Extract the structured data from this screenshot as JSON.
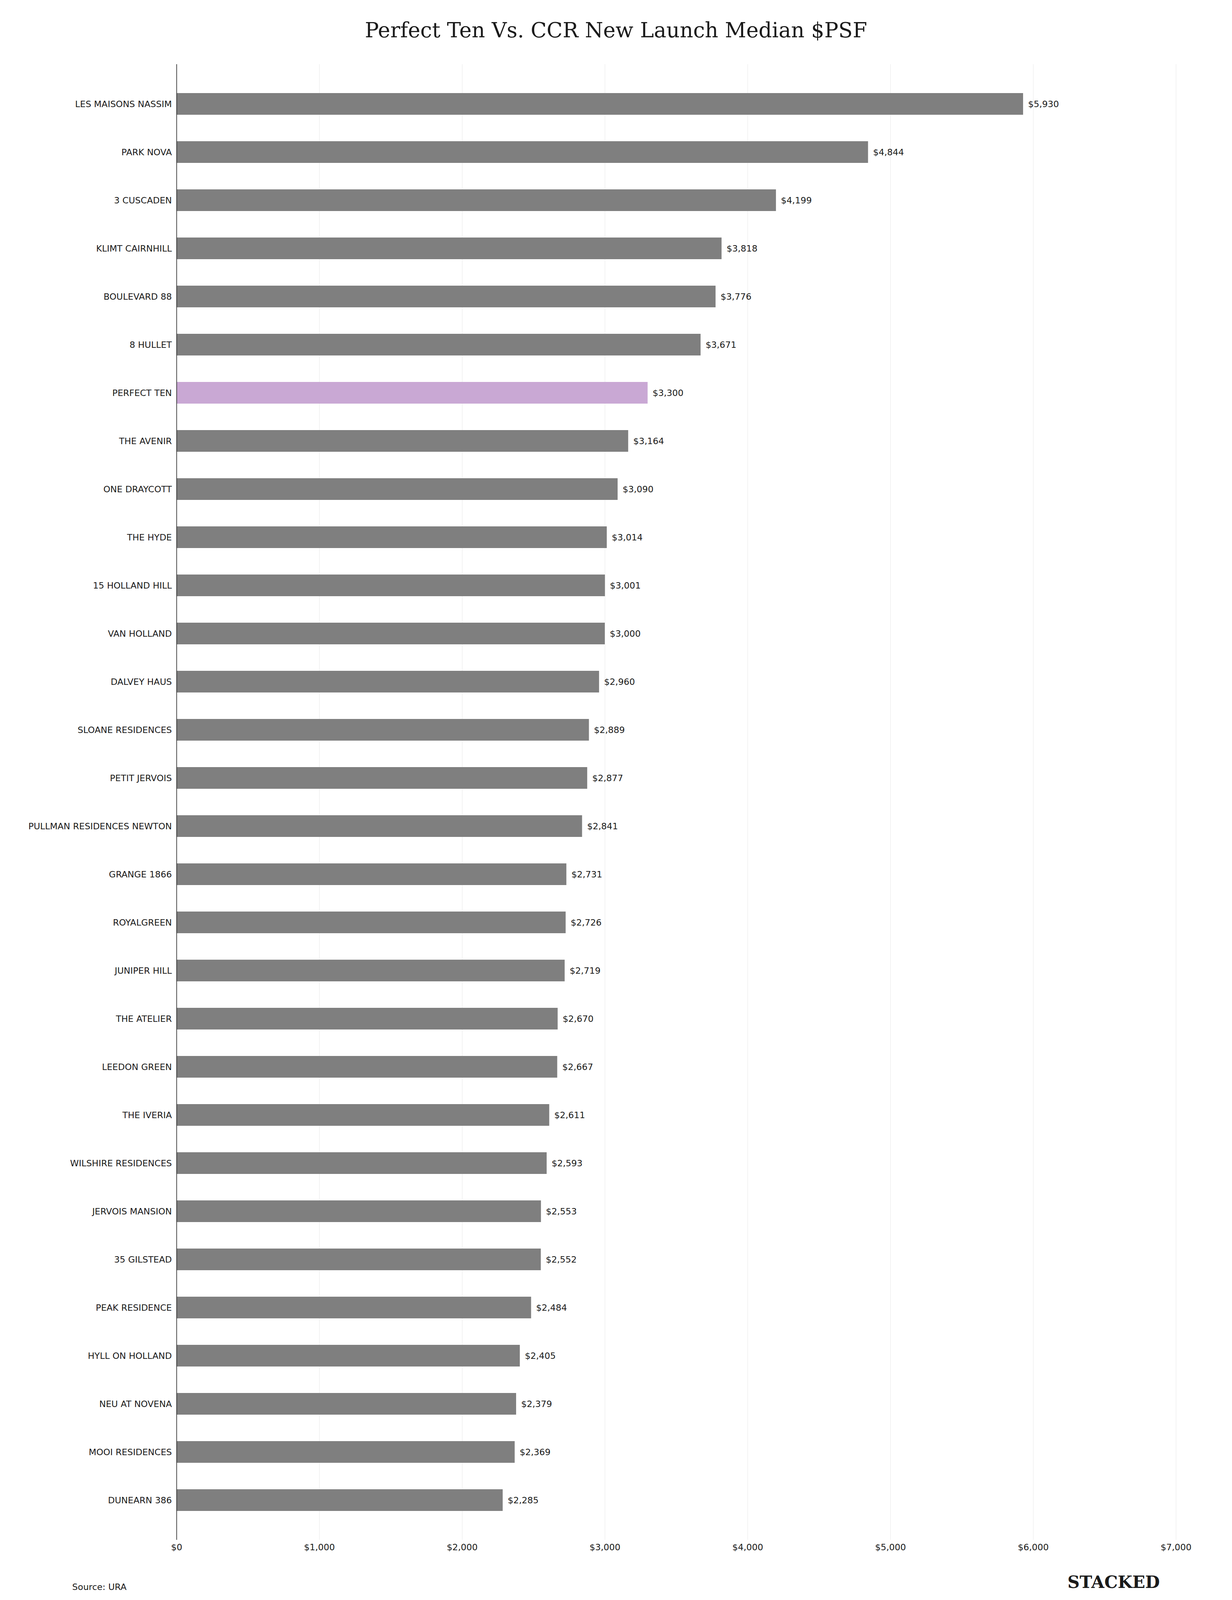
{
  "chart_data": {
    "type": "bar",
    "orientation": "horizontal",
    "title": "Perfect Ten Vs. CCR New Launch Median $PSF",
    "categories": [
      "LES MAISONS NASSIM",
      "PARK NOVA",
      "3 CUSCADEN",
      "KLIMT CAIRNHILL",
      "BOULEVARD 88",
      "8 HULLET",
      "PERFECT TEN",
      "THE AVENIR",
      "ONE DRAYCOTT",
      "THE HYDE",
      "15 HOLLAND HILL",
      "VAN HOLLAND",
      "DALVEY HAUS",
      "SLOANE RESIDENCES",
      "PETIT JERVOIS",
      "PULLMAN RESIDENCES NEWTON",
      "GRANGE 1866",
      "ROYALGREEN",
      "JUNIPER HILL",
      "THE ATELIER",
      "LEEDON GREEN",
      "THE IVERIA",
      "WILSHIRE RESIDENCES",
      "JERVOIS MANSION",
      "35 GILSTEAD",
      "PEAK RESIDENCE",
      "HYLL ON HOLLAND",
      "NEU AT NOVENA",
      "MOOI RESIDENCES",
      "DUNEARN 386"
    ],
    "values": [
      5930,
      4844,
      4199,
      3818,
      3776,
      3671,
      3300,
      3164,
      3090,
      3014,
      3001,
      3000,
      2960,
      2889,
      2877,
      2841,
      2731,
      2726,
      2719,
      2670,
      2667,
      2611,
      2593,
      2553,
      2552,
      2484,
      2405,
      2379,
      2369,
      2285
    ],
    "value_labels": [
      "$5,930",
      "$4,844",
      "$4,199",
      "$3,818",
      "$3,776",
      "$3,671",
      "$3,300",
      "$3,164",
      "$3,090",
      "$3,014",
      "$3,001",
      "$3,000",
      "$2,960",
      "$2,889",
      "$2,877",
      "$2,841",
      "$2,731",
      "$2,726",
      "$2,719",
      "$2,670",
      "$2,667",
      "$2,611",
      "$2,593",
      "$2,553",
      "$2,552",
      "$2,484",
      "$2,405",
      "$2,379",
      "$2,369",
      "$2,285"
    ],
    "data_labels": true,
    "colors": [
      "#7f7f7f",
      "#7f7f7f",
      "#7f7f7f",
      "#7f7f7f",
      "#7f7f7f",
      "#7f7f7f",
      "#c9a8d4",
      "#7f7f7f",
      "#7f7f7f",
      "#7f7f7f",
      "#7f7f7f",
      "#7f7f7f",
      "#7f7f7f",
      "#7f7f7f",
      "#7f7f7f",
      "#7f7f7f",
      "#7f7f7f",
      "#7f7f7f",
      "#7f7f7f",
      "#7f7f7f",
      "#7f7f7f",
      "#7f7f7f",
      "#7f7f7f",
      "#7f7f7f",
      "#7f7f7f",
      "#7f7f7f",
      "#7f7f7f",
      "#7f7f7f",
      "#7f7f7f",
      "#7f7f7f"
    ],
    "xlim": [
      0,
      7000
    ],
    "xticks": [
      {
        "value": 0,
        "label": "$0"
      },
      {
        "value": 1000,
        "label": "$1,000"
      },
      {
        "value": 2000,
        "label": "$2,000"
      },
      {
        "value": 3000,
        "label": "$3,000"
      },
      {
        "value": 4000,
        "label": "$4,000"
      },
      {
        "value": 5000,
        "label": "$5,000"
      },
      {
        "value": 6000,
        "label": "$6,000"
      },
      {
        "value": 7000,
        "label": "$7,000"
      }
    ],
    "grid": true,
    "annotations": [
      "Source: URA",
      "STACKED"
    ]
  }
}
